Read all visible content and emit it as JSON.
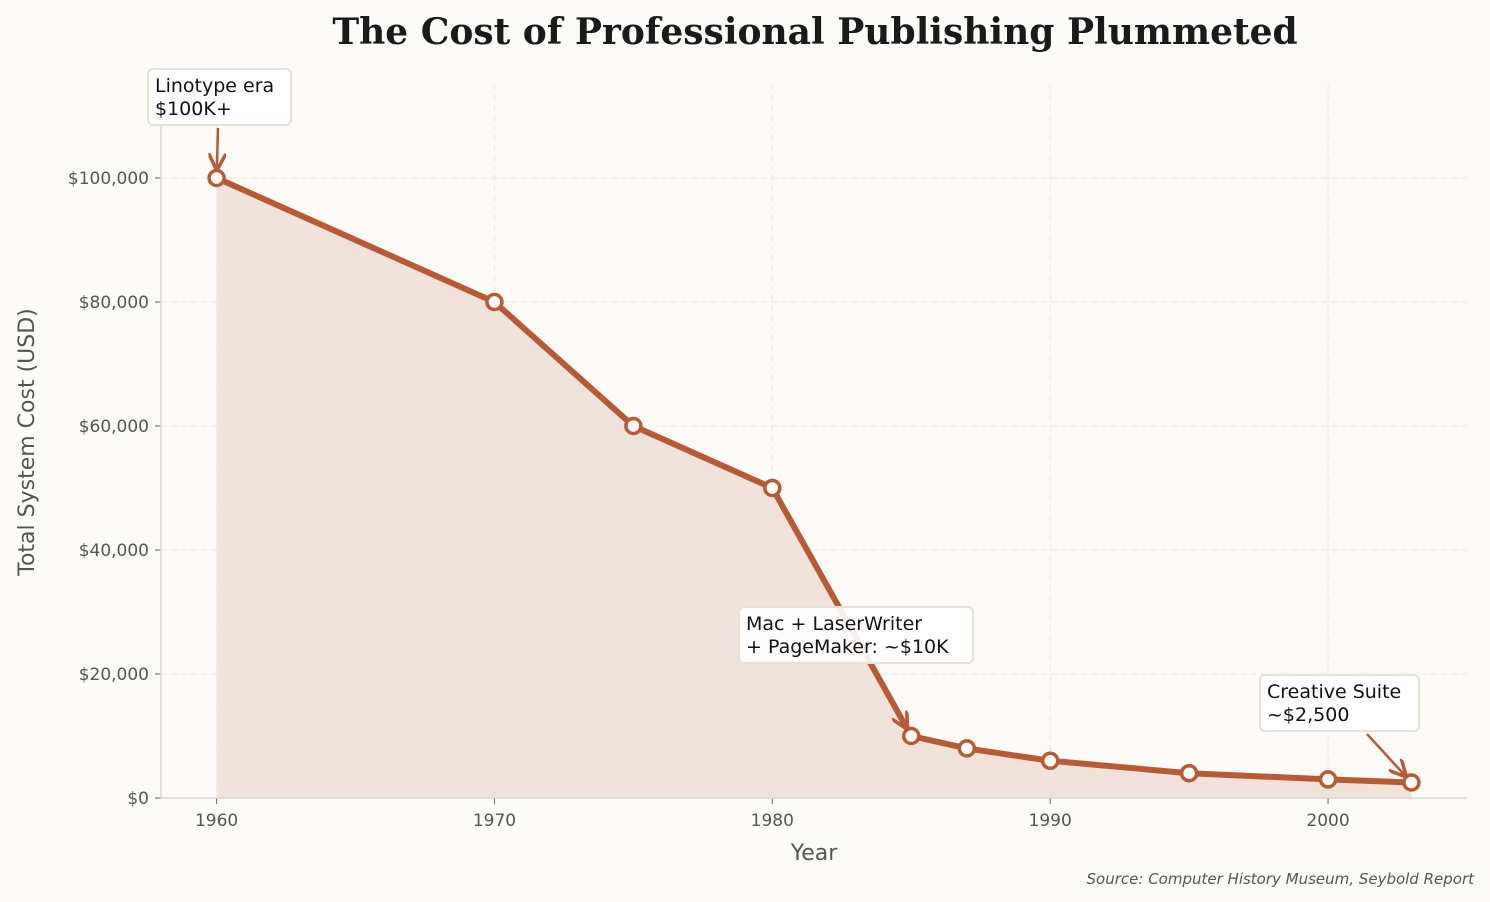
{
  "chart_data": {
    "type": "area",
    "title": "The Cost of Professional Publishing Plummeted",
    "xlabel": "Year",
    "ylabel": "Total System Cost (USD)",
    "xlim": [
      1958,
      2005
    ],
    "ylim": [
      0,
      115000
    ],
    "x_ticks": [
      1960,
      1970,
      1980,
      1990,
      2000
    ],
    "y_ticks": [
      0,
      20000,
      40000,
      60000,
      80000,
      100000
    ],
    "y_tick_labels": [
      "$0",
      "$20,000",
      "$40,000",
      "$60,000",
      "$80,000",
      "$100,000"
    ],
    "grid": true,
    "series": [
      {
        "x": [
          1960,
          1970,
          1975,
          1980,
          1985,
          1987,
          1990,
          1995,
          2000,
          2003
        ],
        "values": [
          100000,
          80000,
          60000,
          50000,
          10000,
          8000,
          6000,
          4000,
          3000,
          2500
        ]
      }
    ],
    "annotations": [
      {
        "lines": [
          "Linotype era",
          "$100K+"
        ],
        "x": 1960,
        "y": 100000
      },
      {
        "lines": [
          "Mac + LaserWriter",
          "+ PageMaker: ~$10K"
        ],
        "x": 1985,
        "y": 10000
      },
      {
        "lines": [
          "Creative Suite",
          "~$2,500"
        ],
        "x": 2003,
        "y": 2500
      }
    ],
    "source": "Source: Computer History Museum, Seybold Report",
    "colors": {
      "line": "#b85a35",
      "fill": "#f1e3dc",
      "marker_face": "#ffffff"
    }
  }
}
